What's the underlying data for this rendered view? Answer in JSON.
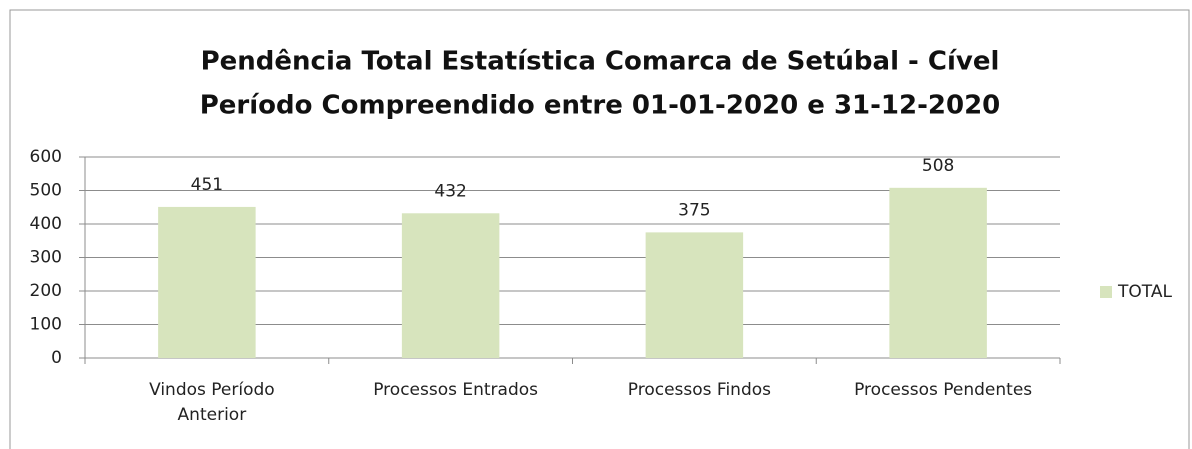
{
  "chart_data": {
    "type": "bar",
    "title": "Pendência Total Estatística Comarca de Setúbal - Cível",
    "subtitle": "Período Compreendido entre 01-01-2020 e 31-12-2020",
    "categories": [
      "Vindos Período Anterior",
      "Processos Entrados",
      "Processos Findos",
      "Processos Pendentes"
    ],
    "series": [
      {
        "name": "TOTAL",
        "color": "#d7e4bd",
        "values": [
          451,
          432,
          375,
          508
        ]
      }
    ],
    "ylim": [
      0,
      600
    ],
    "yticks": [
      0,
      100,
      200,
      300,
      400,
      500,
      600
    ],
    "grid": true,
    "legend": "right"
  }
}
